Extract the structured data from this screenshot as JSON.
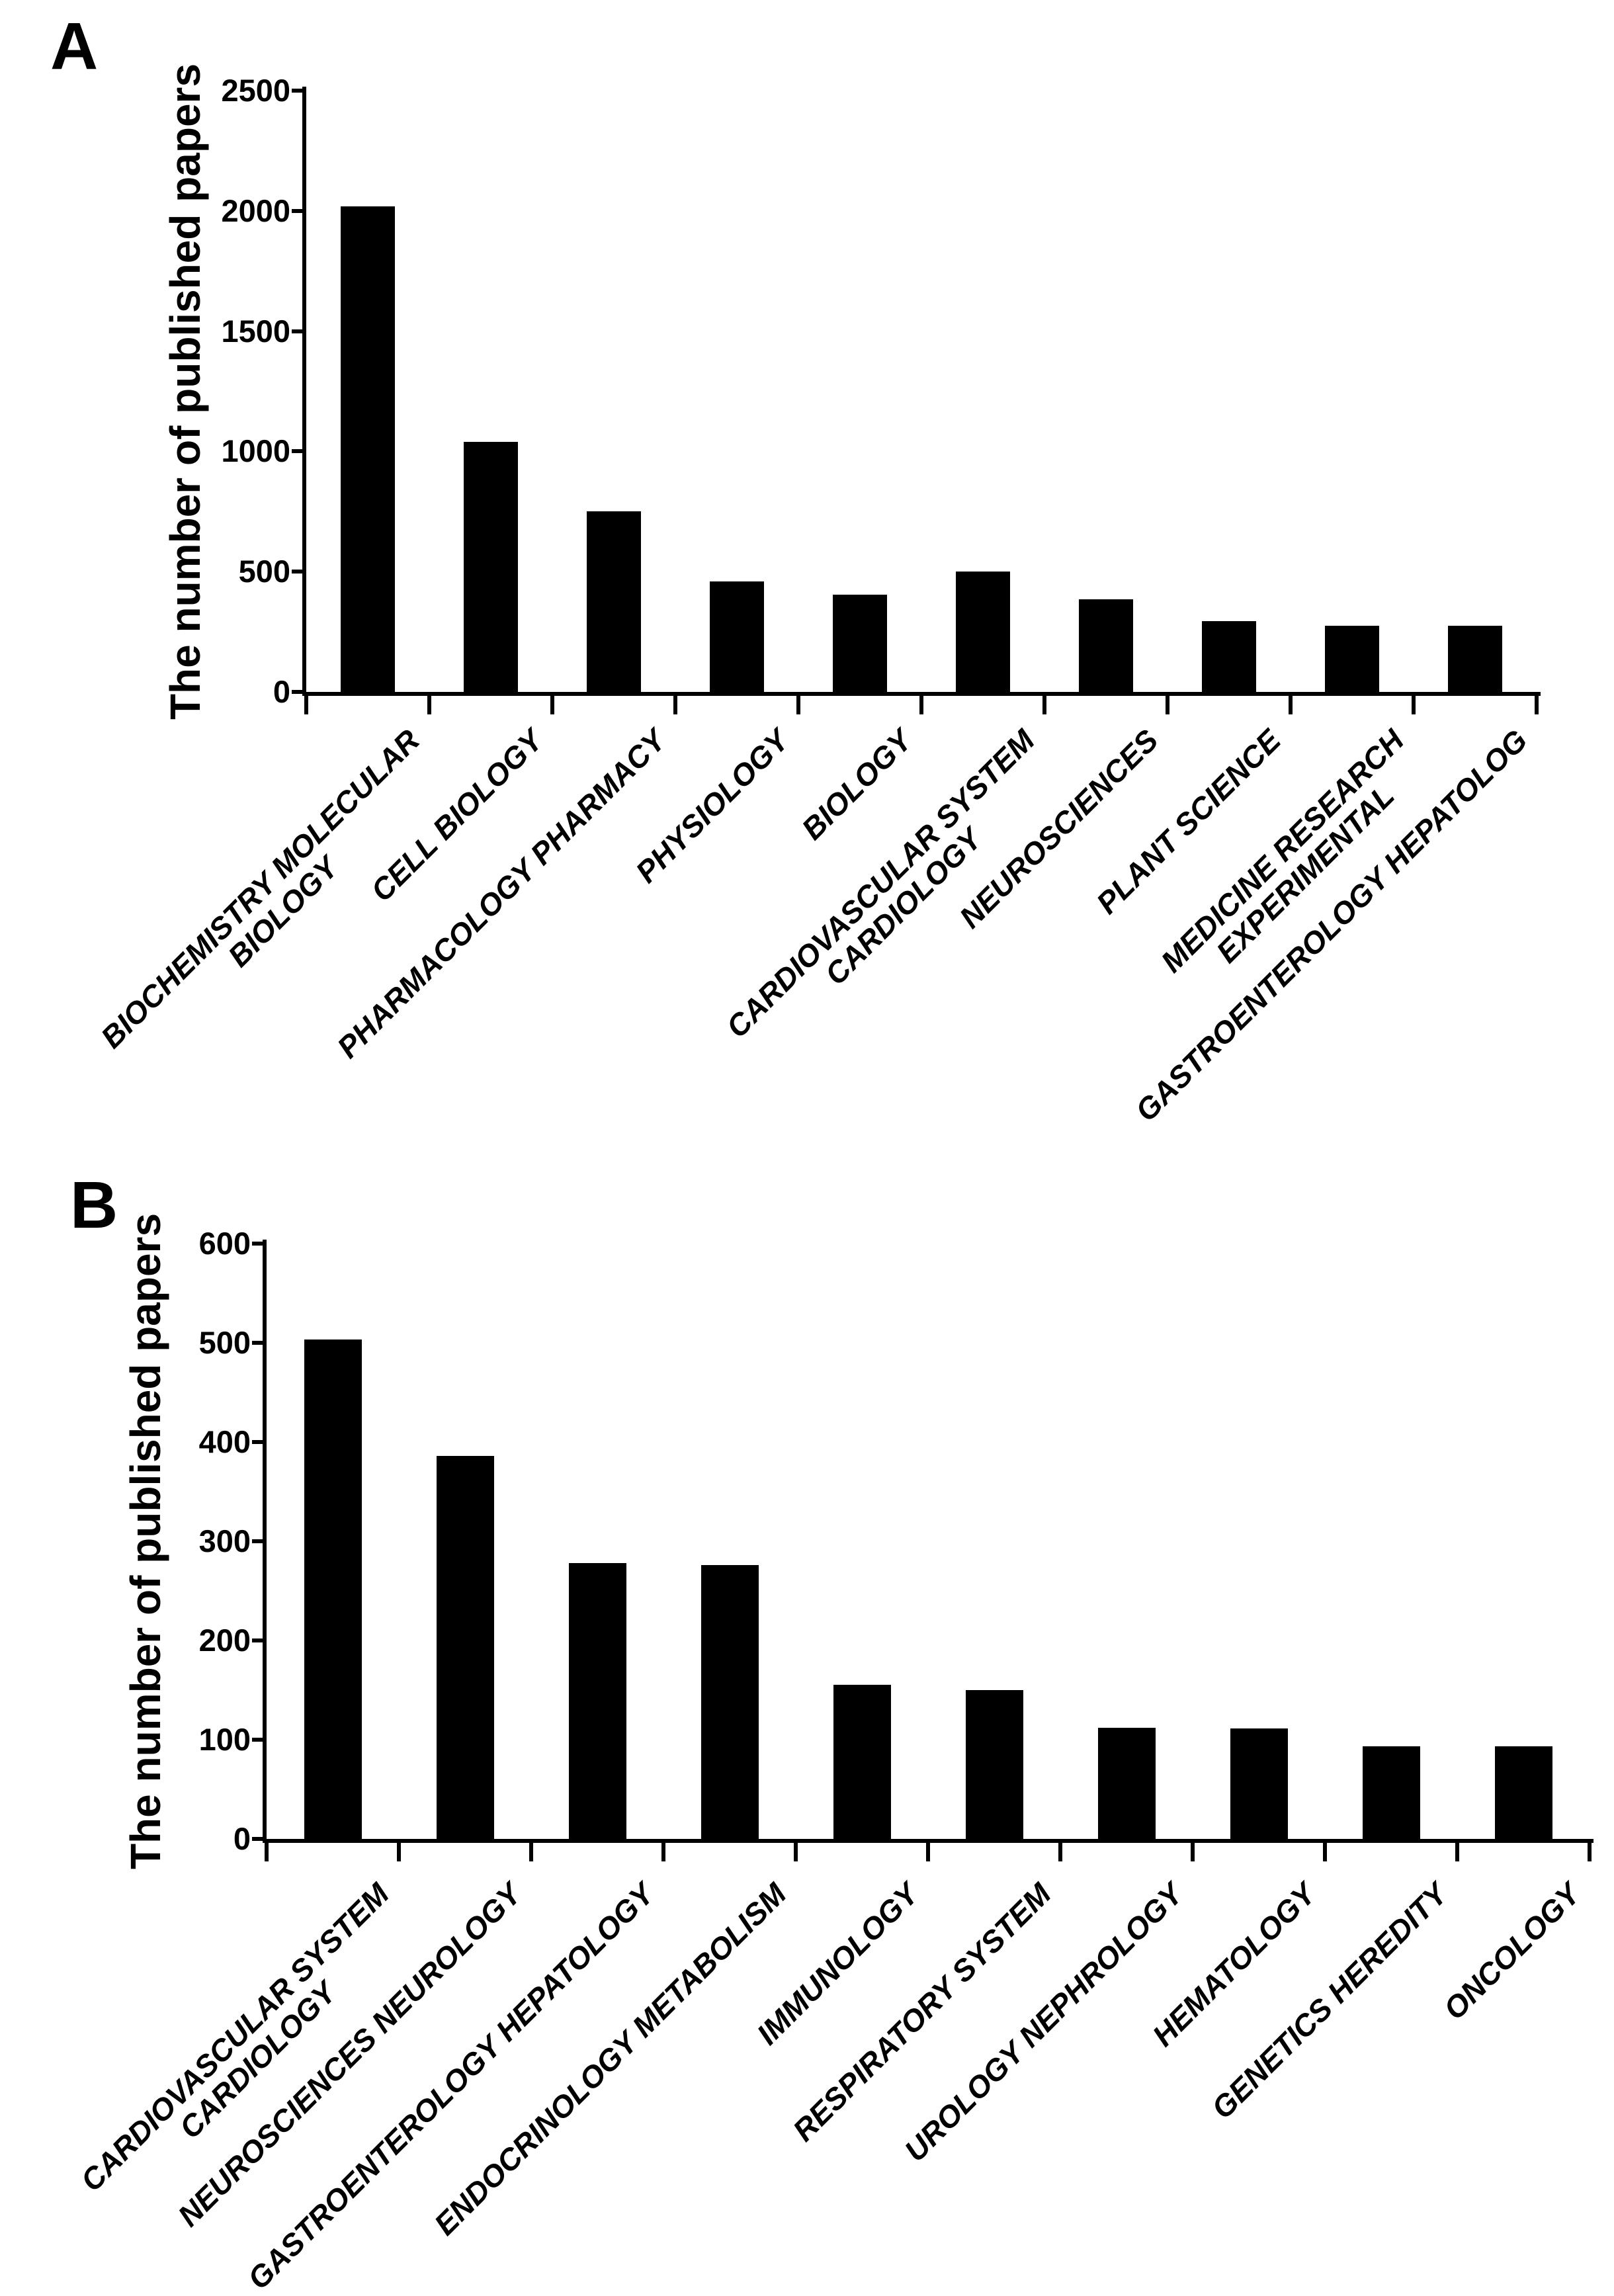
{
  "figure": {
    "background": "#ffffff",
    "ink_color": "#000000",
    "bar_color": "#000000"
  },
  "chart_data": [
    {
      "type": "bar",
      "panel_label": "A",
      "ylabel": "The number of published papers",
      "xlabel": "",
      "ylim": [
        0,
        2500
      ],
      "yticks": [
        0,
        500,
        1000,
        1500,
        2000,
        2500
      ],
      "grid": false,
      "legend": "none",
      "bar_color": "#000000",
      "categories": [
        "BIOCHEMISTRY MOLECULAR\nBIOLOGY",
        "CELL BIOLOGY",
        "PHARMACOLOGY PHARMACY",
        "PHYSIOLOGY",
        "BIOLOGY",
        "CARDIOVASCULAR SYSTEM\nCARDIOLOGY",
        "NEUROSCIENCES",
        "PLANT SCIENCE",
        "MEDICINE RESEARCH\nEXPERIMENTAL",
        "GASTROENTEROLOGY HEPATOLOG"
      ],
      "values": [
        2020,
        1040,
        750,
        460,
        405,
        500,
        385,
        295,
        275,
        275
      ]
    },
    {
      "type": "bar",
      "panel_label": "B",
      "ylabel": "The number of published papers",
      "xlabel": "",
      "ylim": [
        0,
        600
      ],
      "yticks": [
        0,
        100,
        200,
        300,
        400,
        500,
        600
      ],
      "grid": false,
      "legend": "none",
      "bar_color": "#000000",
      "categories": [
        "CARDIOVASCULAR SYSTEM\nCARDIOLOGY",
        "NEUROSCIENCES NEUROLOGY",
        "GASTROENTEROLOGY HEPATOLOGY",
        "ENDOCRINOLOGY METABOLISM",
        "IMMUNOLOGY",
        "RESPIRATORY SYSTEM",
        "UROLOGY NEPHROLOGY",
        "HEMATOLOGY",
        "GENETICS HEREDITY",
        "ONCOLOGY"
      ],
      "values": [
        503,
        386,
        278,
        276,
        155,
        150,
        112,
        111,
        93,
        93
      ]
    }
  ]
}
